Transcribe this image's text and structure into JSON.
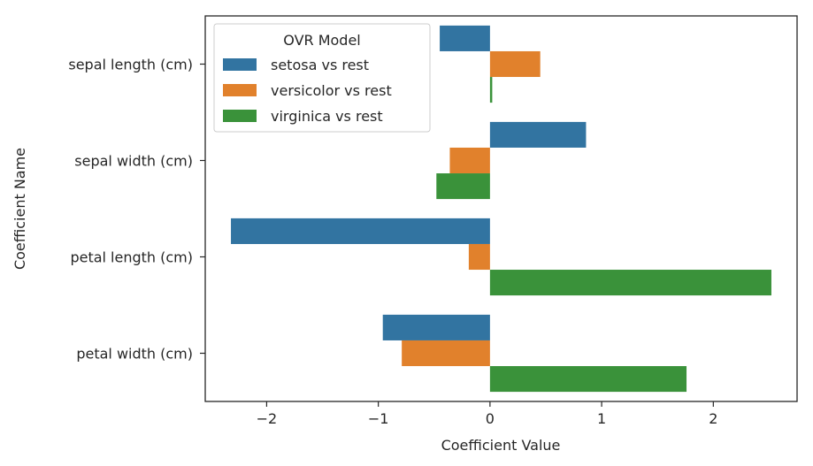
{
  "chart_data": {
    "type": "bar",
    "orientation": "horizontal",
    "title": "",
    "xlabel": "Coefficient Value",
    "ylabel": "Coefficient Name",
    "xlim": [
      -2.55,
      2.75
    ],
    "x_ticks": [
      -2,
      -1,
      0,
      1,
      2
    ],
    "x_tick_labels": [
      "−2",
      "−1",
      "0",
      "1",
      "2"
    ],
    "grid": false,
    "categories": [
      "sepal length (cm)",
      "sepal width (cm)",
      "petal length (cm)",
      "petal width (cm)"
    ],
    "legend": {
      "title": "OVR Model",
      "placement": "top-left"
    },
    "series": [
      {
        "name": "setosa vs rest",
        "color": "#3274a1",
        "values": [
          -0.45,
          0.86,
          -2.32,
          -0.96
        ]
      },
      {
        "name": "versicolor vs rest",
        "color": "#e1812c",
        "values": [
          0.45,
          -0.36,
          -0.19,
          -0.79
        ]
      },
      {
        "name": "virginica vs rest",
        "color": "#3a923a",
        "values": [
          0.02,
          -0.48,
          2.52,
          1.76
        ]
      }
    ]
  }
}
